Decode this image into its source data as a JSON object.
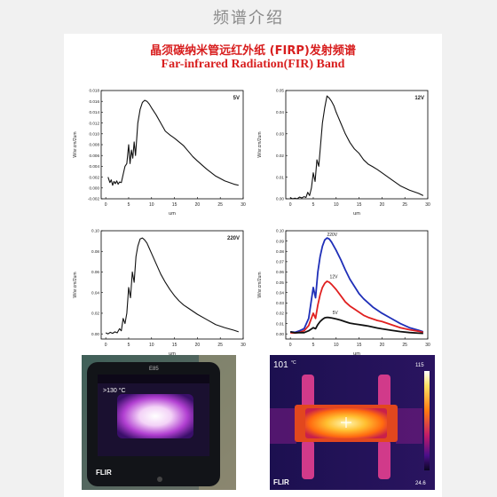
{
  "header": {
    "title": "频谱介绍"
  },
  "poster": {
    "title_cn": "晶须碳纳米管远红外纸 (FIRP)发射频谱",
    "title_en": "Far-infrared Radiation(FIR) Band"
  },
  "chart_data": [
    {
      "type": "line",
      "title": "5V",
      "xlabel": "um",
      "ylabel": "W/sr.cm/2um",
      "xlim": [
        -1,
        30
      ],
      "ylim": [
        -0.002,
        0.018
      ],
      "xticks": [
        "0",
        "5",
        "10",
        "15",
        "20",
        "25",
        "30"
      ],
      "yticks": [
        "-0.002",
        "0.000",
        "0.002",
        "0.004",
        "0.006",
        "0.008",
        "0.010",
        "0.012",
        "0.014",
        "0.016",
        "0.018"
      ],
      "series": [
        {
          "color": "#111111",
          "x": [
            0.5,
            0.9,
            1.2,
            1.5,
            1.8,
            2.1,
            2.4,
            2.7,
            3.0,
            3.4,
            3.8,
            4.2,
            4.6,
            5.0,
            5.3,
            5.6,
            5.9,
            6.2,
            6.5,
            7.0,
            7.5,
            8.0,
            8.5,
            9.0,
            9.5,
            10,
            11,
            12,
            13,
            14,
            15,
            16,
            17,
            18,
            19,
            20,
            22,
            24,
            26,
            28,
            29
          ],
          "y": [
            0.002,
            0.001,
            0.0015,
            0.0005,
            0.0012,
            0.0008,
            0.0013,
            0.0007,
            0.0011,
            0.001,
            0.0025,
            0.004,
            0.0045,
            0.008,
            0.0045,
            0.007,
            0.0055,
            0.0085,
            0.006,
            0.012,
            0.0145,
            0.0158,
            0.0162,
            0.016,
            0.0155,
            0.0148,
            0.0135,
            0.012,
            0.0105,
            0.0098,
            0.0092,
            0.0085,
            0.0078,
            0.0068,
            0.0058,
            0.005,
            0.0035,
            0.0022,
            0.0013,
            0.0007,
            0.0005
          ]
        }
      ]
    },
    {
      "type": "line",
      "title": "12V",
      "xlabel": "um",
      "ylabel": "W/sr.cm/2um",
      "xlim": [
        -1,
        30
      ],
      "ylim": [
        0,
        0.05
      ],
      "xticks": [
        "0",
        "5",
        "10",
        "15",
        "20",
        "25",
        "30"
      ],
      "yticks": [
        "0.00",
        "0.01",
        "0.02",
        "0.03",
        "0.04",
        "0.05"
      ],
      "series": [
        {
          "color": "#111111",
          "x": [
            0,
            0.5,
            1.0,
            1.5,
            2.0,
            2.5,
            3.0,
            3.4,
            3.8,
            4.2,
            4.6,
            5.0,
            5.4,
            5.8,
            6.2,
            6.6,
            7.0,
            7.5,
            8.0,
            8.5,
            9.0,
            9.5,
            10,
            11,
            12,
            13,
            14,
            15,
            16,
            17,
            18,
            19,
            20,
            22,
            24,
            26,
            28,
            29
          ],
          "y": [
            0.0005,
            0.0,
            0.0003,
            0.0,
            0.0008,
            0.0004,
            0.001,
            0.0006,
            0.003,
            0.0015,
            0.005,
            0.012,
            0.008,
            0.018,
            0.015,
            0.025,
            0.035,
            0.042,
            0.0475,
            0.0465,
            0.045,
            0.043,
            0.04,
            0.035,
            0.03,
            0.026,
            0.023,
            0.021,
            0.018,
            0.016,
            0.0148,
            0.0135,
            0.012,
            0.009,
            0.006,
            0.004,
            0.0025,
            0.0015
          ]
        }
      ]
    },
    {
      "type": "line",
      "title": "220V",
      "xlabel": "um",
      "ylabel": "W/sr.cm/2um",
      "xlim": [
        -1,
        30
      ],
      "ylim": [
        -0.005,
        0.1
      ],
      "xticks": [
        "0",
        "5",
        "10",
        "15",
        "20",
        "25",
        "30"
      ],
      "yticks": [
        "0.00",
        "0.02",
        "0.04",
        "0.06",
        "0.08",
        "0.10"
      ],
      "series": [
        {
          "color": "#111111",
          "x": [
            0,
            0.5,
            1.0,
            1.5,
            2.0,
            2.5,
            3.0,
            3.4,
            3.8,
            4.2,
            4.6,
            5.0,
            5.4,
            5.8,
            6.2,
            6.6,
            7.0,
            7.5,
            8.0,
            8.5,
            9.0,
            9.5,
            10,
            11,
            12,
            13,
            14,
            15,
            16,
            17,
            18,
            19,
            20,
            22,
            24,
            26,
            28,
            29
          ],
          "y": [
            0.001,
            0.0,
            0.0015,
            0.0005,
            0.002,
            0.001,
            0.005,
            0.003,
            0.015,
            0.01,
            0.02,
            0.045,
            0.035,
            0.06,
            0.05,
            0.075,
            0.085,
            0.092,
            0.093,
            0.091,
            0.088,
            0.083,
            0.078,
            0.068,
            0.058,
            0.05,
            0.043,
            0.037,
            0.032,
            0.028,
            0.025,
            0.022,
            0.019,
            0.014,
            0.009,
            0.006,
            0.0035,
            0.002
          ]
        }
      ]
    },
    {
      "type": "line",
      "title": "",
      "xlabel": "um",
      "ylabel": "W/sr.cm/2um",
      "xlim": [
        -1,
        30
      ],
      "ylim": [
        -0.005,
        0.1
      ],
      "xticks": [
        "0",
        "5",
        "10",
        "15",
        "20",
        "25",
        "30"
      ],
      "yticks": [
        "0.00",
        "0.01",
        "0.02",
        "0.03",
        "0.04",
        "0.05",
        "0.06",
        "0.07",
        "0.08",
        "0.09",
        "0.10"
      ],
      "series": [
        {
          "name": "220V",
          "color": "#1f2fb8",
          "x": [
            0,
            1,
            2,
            3,
            4,
            5,
            5.5,
            6,
            6.5,
            7,
            7.5,
            8,
            8.5,
            9,
            10,
            11,
            12,
            13,
            14,
            15,
            16,
            17,
            18,
            19,
            20,
            22,
            24,
            26,
            28,
            29
          ],
          "y": [
            0.002,
            0.0015,
            0.003,
            0.005,
            0.015,
            0.045,
            0.035,
            0.06,
            0.075,
            0.085,
            0.091,
            0.093,
            0.092,
            0.089,
            0.081,
            0.072,
            0.062,
            0.053,
            0.046,
            0.039,
            0.034,
            0.03,
            0.026,
            0.023,
            0.02,
            0.015,
            0.01,
            0.006,
            0.0035,
            0.002
          ]
        },
        {
          "name": "12V",
          "color": "#e02020",
          "x": [
            0,
            1,
            2,
            3,
            4,
            5,
            5.5,
            6,
            6.5,
            7,
            7.5,
            8,
            8.5,
            9,
            10,
            11,
            12,
            13,
            14,
            15,
            16,
            17,
            18,
            19,
            20,
            22,
            24,
            26,
            28,
            29
          ],
          "y": [
            0.001,
            0.0008,
            0.0015,
            0.003,
            0.008,
            0.02,
            0.015,
            0.028,
            0.038,
            0.045,
            0.049,
            0.051,
            0.05,
            0.048,
            0.043,
            0.037,
            0.031,
            0.027,
            0.024,
            0.021,
            0.018,
            0.016,
            0.0145,
            0.013,
            0.012,
            0.009,
            0.006,
            0.004,
            0.0025,
            0.0015
          ]
        },
        {
          "name": "5V",
          "color": "#111111",
          "x": [
            0,
            1,
            2,
            3,
            4,
            5,
            5.5,
            6,
            6.5,
            7,
            7.5,
            8,
            8.5,
            9,
            10,
            11,
            12,
            13,
            14,
            15,
            16,
            17,
            18,
            19,
            20,
            22,
            24,
            26,
            28,
            29
          ],
          "y": [
            0.002,
            0.001,
            0.0013,
            0.0012,
            0.003,
            0.006,
            0.005,
            0.009,
            0.012,
            0.014,
            0.0155,
            0.016,
            0.0158,
            0.0154,
            0.0145,
            0.0133,
            0.0118,
            0.0104,
            0.0096,
            0.009,
            0.0083,
            0.0076,
            0.0066,
            0.0057,
            0.0049,
            0.0035,
            0.0022,
            0.0013,
            0.0007,
            0.0005
          ]
        }
      ],
      "series_labels": [
        "220V",
        "12V",
        "5V"
      ]
    }
  ],
  "thermal_camera": {
    "brand_top": "E85",
    "brand_bottom": "FLIR",
    "readout": ">130 °C"
  },
  "thermal_image": {
    "temperature": "101",
    "unit": "°C",
    "scale_max": "115",
    "scale_min": "24.6",
    "brand": "FLIR"
  }
}
